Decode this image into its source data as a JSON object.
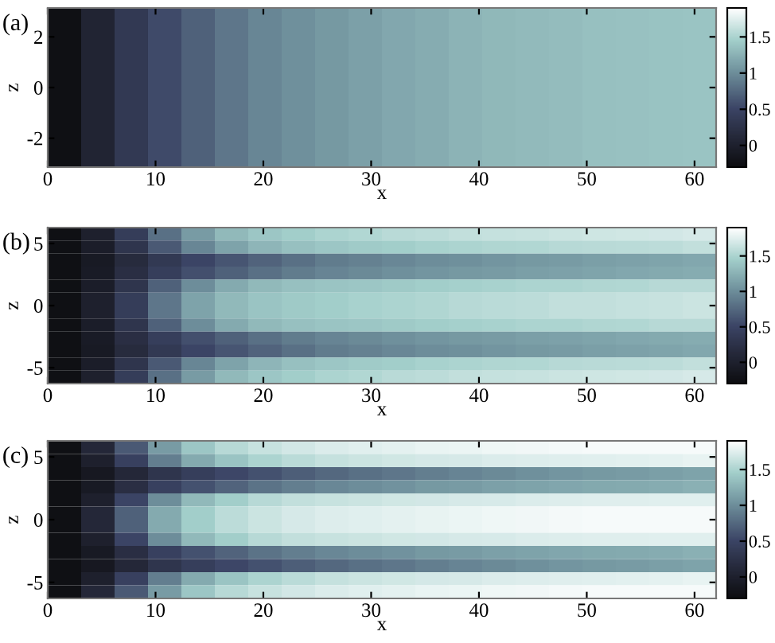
{
  "chart_data": [
    {
      "type": "heatmap",
      "title": "(a)",
      "xlabel": "x",
      "ylabel": "z",
      "xlim": [
        0,
        62
      ],
      "ylim": [
        -3.14,
        3.14
      ],
      "xticks": [
        0,
        10,
        20,
        30,
        40,
        50,
        60
      ],
      "yticks": [
        -2,
        0,
        2
      ],
      "clim": [
        -0.3,
        1.9
      ],
      "cticks": [
        0,
        0.5,
        1,
        1.5
      ],
      "cells": [
        [
          -0.25,
          0.05,
          0.35,
          0.55,
          0.7,
          0.85,
          0.95,
          1.02,
          1.08,
          1.13,
          1.18,
          1.22,
          1.26,
          1.29,
          1.31,
          1.33,
          1.35,
          1.36,
          1.37,
          1.38
        ]
      ]
    },
    {
      "type": "heatmap",
      "title": "(b)",
      "xlabel": "x",
      "ylabel": "z",
      "xlim": [
        0,
        62
      ],
      "ylim": [
        -6.28,
        6.28
      ],
      "xticks": [
        0,
        10,
        20,
        30,
        40,
        50,
        60
      ],
      "yticks": [
        -5,
        0,
        5
      ],
      "clim": [
        -0.3,
        1.9
      ],
      "cticks": [
        0,
        0.5,
        1,
        1.5
      ],
      "cells": [
        [
          -0.25,
          0.0,
          0.4,
          0.8,
          1.1,
          1.3,
          1.4,
          1.45,
          1.5,
          1.53,
          1.56,
          1.58,
          1.6,
          1.62,
          1.63,
          1.65,
          1.66,
          1.67,
          1.68,
          1.7
        ],
        [
          -0.25,
          -0.05,
          0.3,
          0.65,
          0.95,
          1.15,
          1.28,
          1.35,
          1.4,
          1.43,
          1.45,
          1.48,
          1.5,
          1.52,
          1.53,
          1.55,
          1.56,
          1.57,
          1.58,
          1.6
        ],
        [
          -0.25,
          -0.1,
          0.15,
          0.35,
          0.5,
          0.62,
          0.72,
          0.8,
          0.88,
          0.92,
          0.96,
          1.0,
          1.02,
          1.05,
          1.08,
          1.1,
          1.12,
          1.14,
          1.16,
          1.18
        ],
        [
          -0.25,
          -0.08,
          0.2,
          0.42,
          0.58,
          0.7,
          0.8,
          0.88,
          0.94,
          0.98,
          1.02,
          1.05,
          1.08,
          1.1,
          1.12,
          1.14,
          1.16,
          1.18,
          1.2,
          1.22
        ],
        [
          -0.25,
          -0.05,
          0.3,
          0.7,
          1.0,
          1.2,
          1.3,
          1.35,
          1.38,
          1.4,
          1.42,
          1.45,
          1.47,
          1.48,
          1.5,
          1.5,
          1.52,
          1.53,
          1.55,
          1.55
        ],
        [
          -0.25,
          0.0,
          0.4,
          0.85,
          1.15,
          1.3,
          1.38,
          1.42,
          1.45,
          1.48,
          1.5,
          1.52,
          1.55,
          1.57,
          1.58,
          1.6,
          1.6,
          1.62,
          1.63,
          1.65
        ],
        [
          -0.25,
          0.0,
          0.4,
          0.85,
          1.15,
          1.3,
          1.38,
          1.42,
          1.45,
          1.48,
          1.5,
          1.52,
          1.55,
          1.57,
          1.58,
          1.6,
          1.6,
          1.62,
          1.63,
          1.65
        ],
        [
          -0.25,
          -0.05,
          0.3,
          0.7,
          1.0,
          1.2,
          1.3,
          1.35,
          1.38,
          1.4,
          1.42,
          1.45,
          1.47,
          1.48,
          1.5,
          1.5,
          1.52,
          1.53,
          1.55,
          1.55
        ],
        [
          -0.25,
          -0.08,
          0.2,
          0.42,
          0.58,
          0.7,
          0.8,
          0.88,
          0.94,
          0.98,
          1.02,
          1.05,
          1.08,
          1.1,
          1.12,
          1.14,
          1.16,
          1.18,
          1.2,
          1.22
        ],
        [
          -0.25,
          -0.1,
          0.15,
          0.35,
          0.5,
          0.62,
          0.72,
          0.8,
          0.88,
          0.92,
          0.96,
          1.0,
          1.02,
          1.05,
          1.08,
          1.1,
          1.12,
          1.14,
          1.16,
          1.18
        ],
        [
          -0.25,
          -0.05,
          0.3,
          0.65,
          0.95,
          1.15,
          1.28,
          1.35,
          1.4,
          1.43,
          1.45,
          1.48,
          1.5,
          1.52,
          1.53,
          1.55,
          1.56,
          1.57,
          1.58,
          1.6
        ],
        [
          -0.25,
          0.0,
          0.4,
          0.8,
          1.1,
          1.3,
          1.4,
          1.45,
          1.5,
          1.53,
          1.56,
          1.58,
          1.6,
          1.62,
          1.63,
          1.65,
          1.66,
          1.67,
          1.68,
          1.7
        ]
      ]
    },
    {
      "type": "heatmap",
      "title": "(c)",
      "xlabel": "x",
      "ylabel": "z",
      "xlim": [
        0,
        62
      ],
      "ylim": [
        -6.28,
        6.28
      ],
      "xticks": [
        0,
        10,
        20,
        30,
        40,
        50,
        60
      ],
      "yticks": [
        -5,
        0,
        5
      ],
      "clim": [
        -0.3,
        1.9
      ],
      "cticks": [
        0,
        0.5,
        1,
        1.5
      ],
      "cells": [
        [
          -0.25,
          0.1,
          0.65,
          1.1,
          1.4,
          1.55,
          1.63,
          1.68,
          1.72,
          1.75,
          1.77,
          1.79,
          1.8,
          1.82,
          1.83,
          1.84,
          1.85,
          1.85,
          1.85,
          1.85
        ],
        [
          -0.25,
          0.0,
          0.45,
          0.9,
          1.2,
          1.38,
          1.5,
          1.57,
          1.62,
          1.65,
          1.67,
          1.69,
          1.7,
          1.72,
          1.73,
          1.74,
          1.75,
          1.76,
          1.77,
          1.78
        ],
        [
          -0.25,
          -0.12,
          0.1,
          0.3,
          0.42,
          0.52,
          0.6,
          0.68,
          0.75,
          0.8,
          0.85,
          0.9,
          0.94,
          0.98,
          1.02,
          1.05,
          1.08,
          1.1,
          1.12,
          1.15
        ],
        [
          -0.25,
          -0.1,
          0.2,
          0.45,
          0.6,
          0.72,
          0.82,
          0.9,
          0.96,
          1.0,
          1.04,
          1.08,
          1.1,
          1.13,
          1.15,
          1.17,
          1.19,
          1.2,
          1.22,
          1.24
        ],
        [
          -0.25,
          0.0,
          0.5,
          1.0,
          1.3,
          1.45,
          1.55,
          1.6,
          1.63,
          1.65,
          1.67,
          1.68,
          1.7,
          1.71,
          1.72,
          1.73,
          1.74,
          1.74,
          1.75,
          1.75
        ],
        [
          -0.25,
          0.1,
          0.7,
          1.2,
          1.45,
          1.58,
          1.65,
          1.7,
          1.73,
          1.75,
          1.77,
          1.78,
          1.8,
          1.82,
          1.83,
          1.84,
          1.85,
          1.85,
          1.85,
          1.85
        ],
        [
          -0.25,
          0.1,
          0.7,
          1.2,
          1.45,
          1.58,
          1.65,
          1.7,
          1.73,
          1.75,
          1.77,
          1.78,
          1.8,
          1.82,
          1.83,
          1.84,
          1.85,
          1.85,
          1.85,
          1.85
        ],
        [
          -0.25,
          0.0,
          0.5,
          1.0,
          1.3,
          1.45,
          1.55,
          1.6,
          1.63,
          1.65,
          1.67,
          1.68,
          1.7,
          1.71,
          1.72,
          1.73,
          1.74,
          1.74,
          1.75,
          1.75
        ],
        [
          -0.25,
          -0.1,
          0.2,
          0.45,
          0.6,
          0.72,
          0.82,
          0.9,
          0.96,
          1.0,
          1.04,
          1.08,
          1.1,
          1.13,
          1.15,
          1.17,
          1.19,
          1.2,
          1.22,
          1.24
        ],
        [
          -0.25,
          -0.12,
          0.1,
          0.3,
          0.42,
          0.52,
          0.6,
          0.68,
          0.75,
          0.8,
          0.85,
          0.9,
          0.94,
          0.98,
          1.02,
          1.05,
          1.08,
          1.1,
          1.12,
          1.15
        ],
        [
          -0.25,
          0.0,
          0.45,
          0.9,
          1.2,
          1.38,
          1.5,
          1.57,
          1.62,
          1.65,
          1.67,
          1.69,
          1.7,
          1.72,
          1.73,
          1.74,
          1.75,
          1.76,
          1.77,
          1.78
        ],
        [
          -0.25,
          0.1,
          0.65,
          1.1,
          1.4,
          1.55,
          1.63,
          1.68,
          1.72,
          1.75,
          1.77,
          1.79,
          1.8,
          1.82,
          1.83,
          1.84,
          1.85,
          1.85,
          1.85,
          1.85
        ]
      ]
    }
  ]
}
